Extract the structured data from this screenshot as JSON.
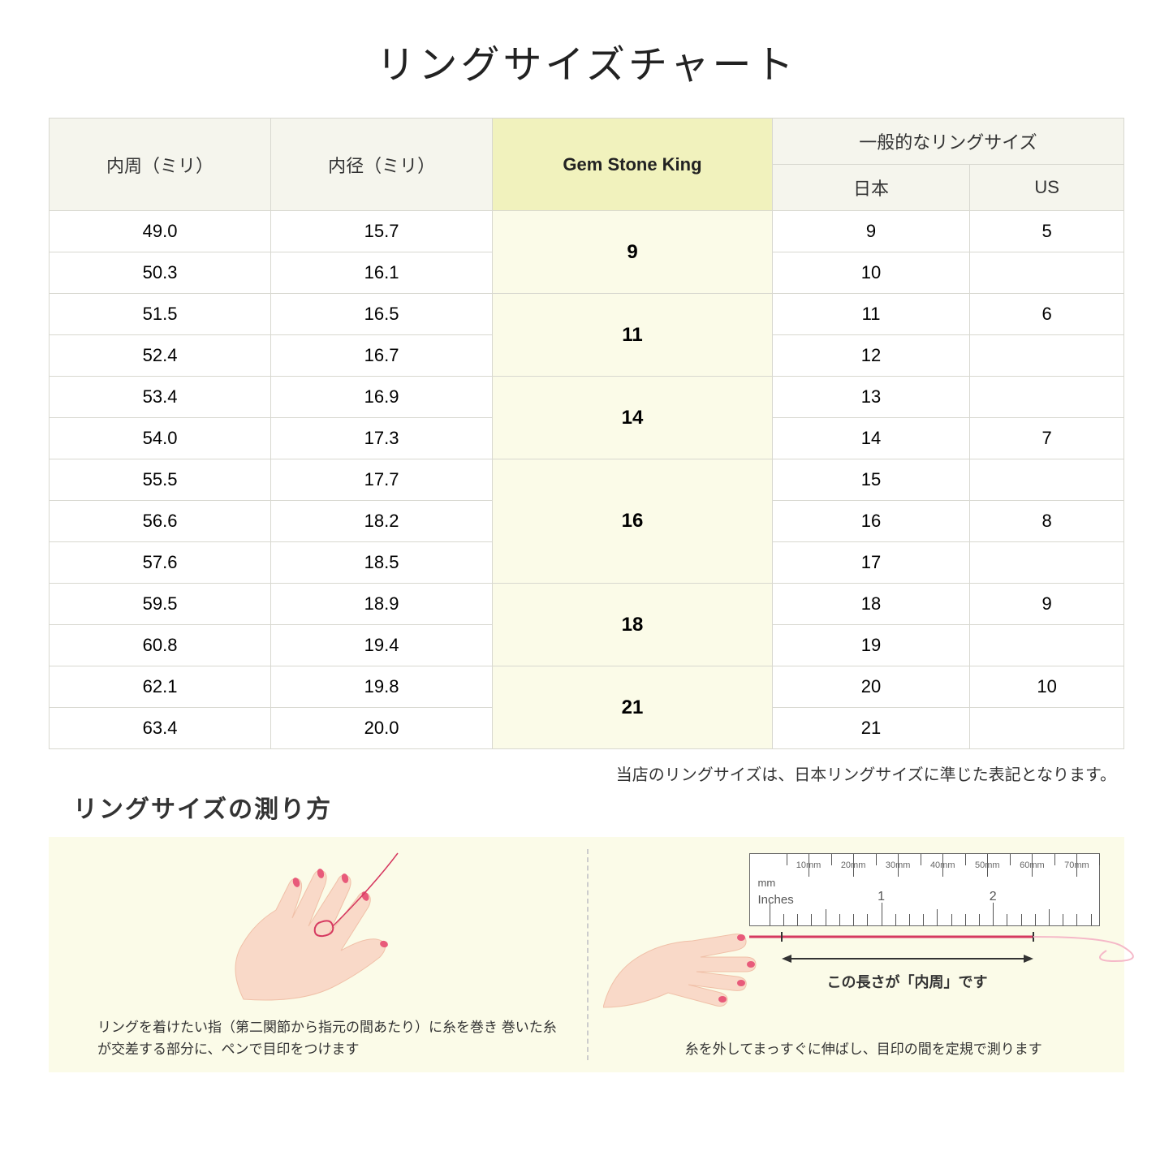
{
  "title": "リングサイズチャート",
  "table": {
    "headers": {
      "circumference": "内周（ミリ）",
      "diameter": "内径（ミリ）",
      "gsk": "Gem Stone King",
      "general": "一般的なリングサイズ",
      "japan": "日本",
      "us": "US"
    },
    "groups": [
      {
        "gsk": "9",
        "rows": [
          {
            "circ": "49.0",
            "diam": "15.7",
            "jp": "9",
            "us": "5"
          },
          {
            "circ": "50.3",
            "diam": "16.1",
            "jp": "10",
            "us": ""
          }
        ]
      },
      {
        "gsk": "11",
        "rows": [
          {
            "circ": "51.5",
            "diam": "16.5",
            "jp": "11",
            "us": "6"
          },
          {
            "circ": "52.4",
            "diam": "16.7",
            "jp": "12",
            "us": ""
          }
        ]
      },
      {
        "gsk": "14",
        "rows": [
          {
            "circ": "53.4",
            "diam": "16.9",
            "jp": "13",
            "us": ""
          },
          {
            "circ": "54.0",
            "diam": "17.3",
            "jp": "14",
            "us": "7"
          }
        ]
      },
      {
        "gsk": "16",
        "rows": [
          {
            "circ": "55.5",
            "diam": "17.7",
            "jp": "15",
            "us": ""
          },
          {
            "circ": "56.6",
            "diam": "18.2",
            "jp": "16",
            "us": "8"
          },
          {
            "circ": "57.6",
            "diam": "18.5",
            "jp": "17",
            "us": ""
          }
        ]
      },
      {
        "gsk": "18",
        "rows": [
          {
            "circ": "59.5",
            "diam": "18.9",
            "jp": "18",
            "us": "9"
          },
          {
            "circ": "60.8",
            "diam": "19.4",
            "jp": "19",
            "us": ""
          }
        ]
      },
      {
        "gsk": "21",
        "rows": [
          {
            "circ": "62.1",
            "diam": "19.8",
            "jp": "20",
            "us": "10"
          },
          {
            "circ": "63.4",
            "diam": "20.0",
            "jp": "21",
            "us": ""
          }
        ]
      }
    ]
  },
  "note": "当店のリングサイズは、日本リングサイズに準じた表記となります。",
  "howto": {
    "title": "リングサイズの測り方",
    "left_text": "リングを着けたい指（第二関節から指元の間あたり）に糸を巻き\n巻いた糸が交差する部分に、ペンで目印をつけます",
    "right_text": "糸を外してまっすぐに伸ばし、目印の間を定規で測ります",
    "length_label": "この長さが「内周」です",
    "ruler": {
      "mm_label": "mm",
      "in_label": "Inches",
      "mm_ticks": [
        "10mm",
        "20mm",
        "30mm",
        "40mm",
        "50mm",
        "60mm",
        "70mm"
      ],
      "in_nums": [
        "1",
        "2"
      ]
    }
  },
  "colors": {
    "header_bg": "#f5f5ed",
    "gsk_header_bg": "#f1f2bd",
    "gsk_cell_bg": "#fbfbe8",
    "border": "#d8d8d0",
    "panel_bg": "#fbfbe8",
    "skin": "#f9d9c8",
    "skin_shadow": "#f0c0a8",
    "nail": "#e85a7a",
    "thread": "#d63960"
  }
}
